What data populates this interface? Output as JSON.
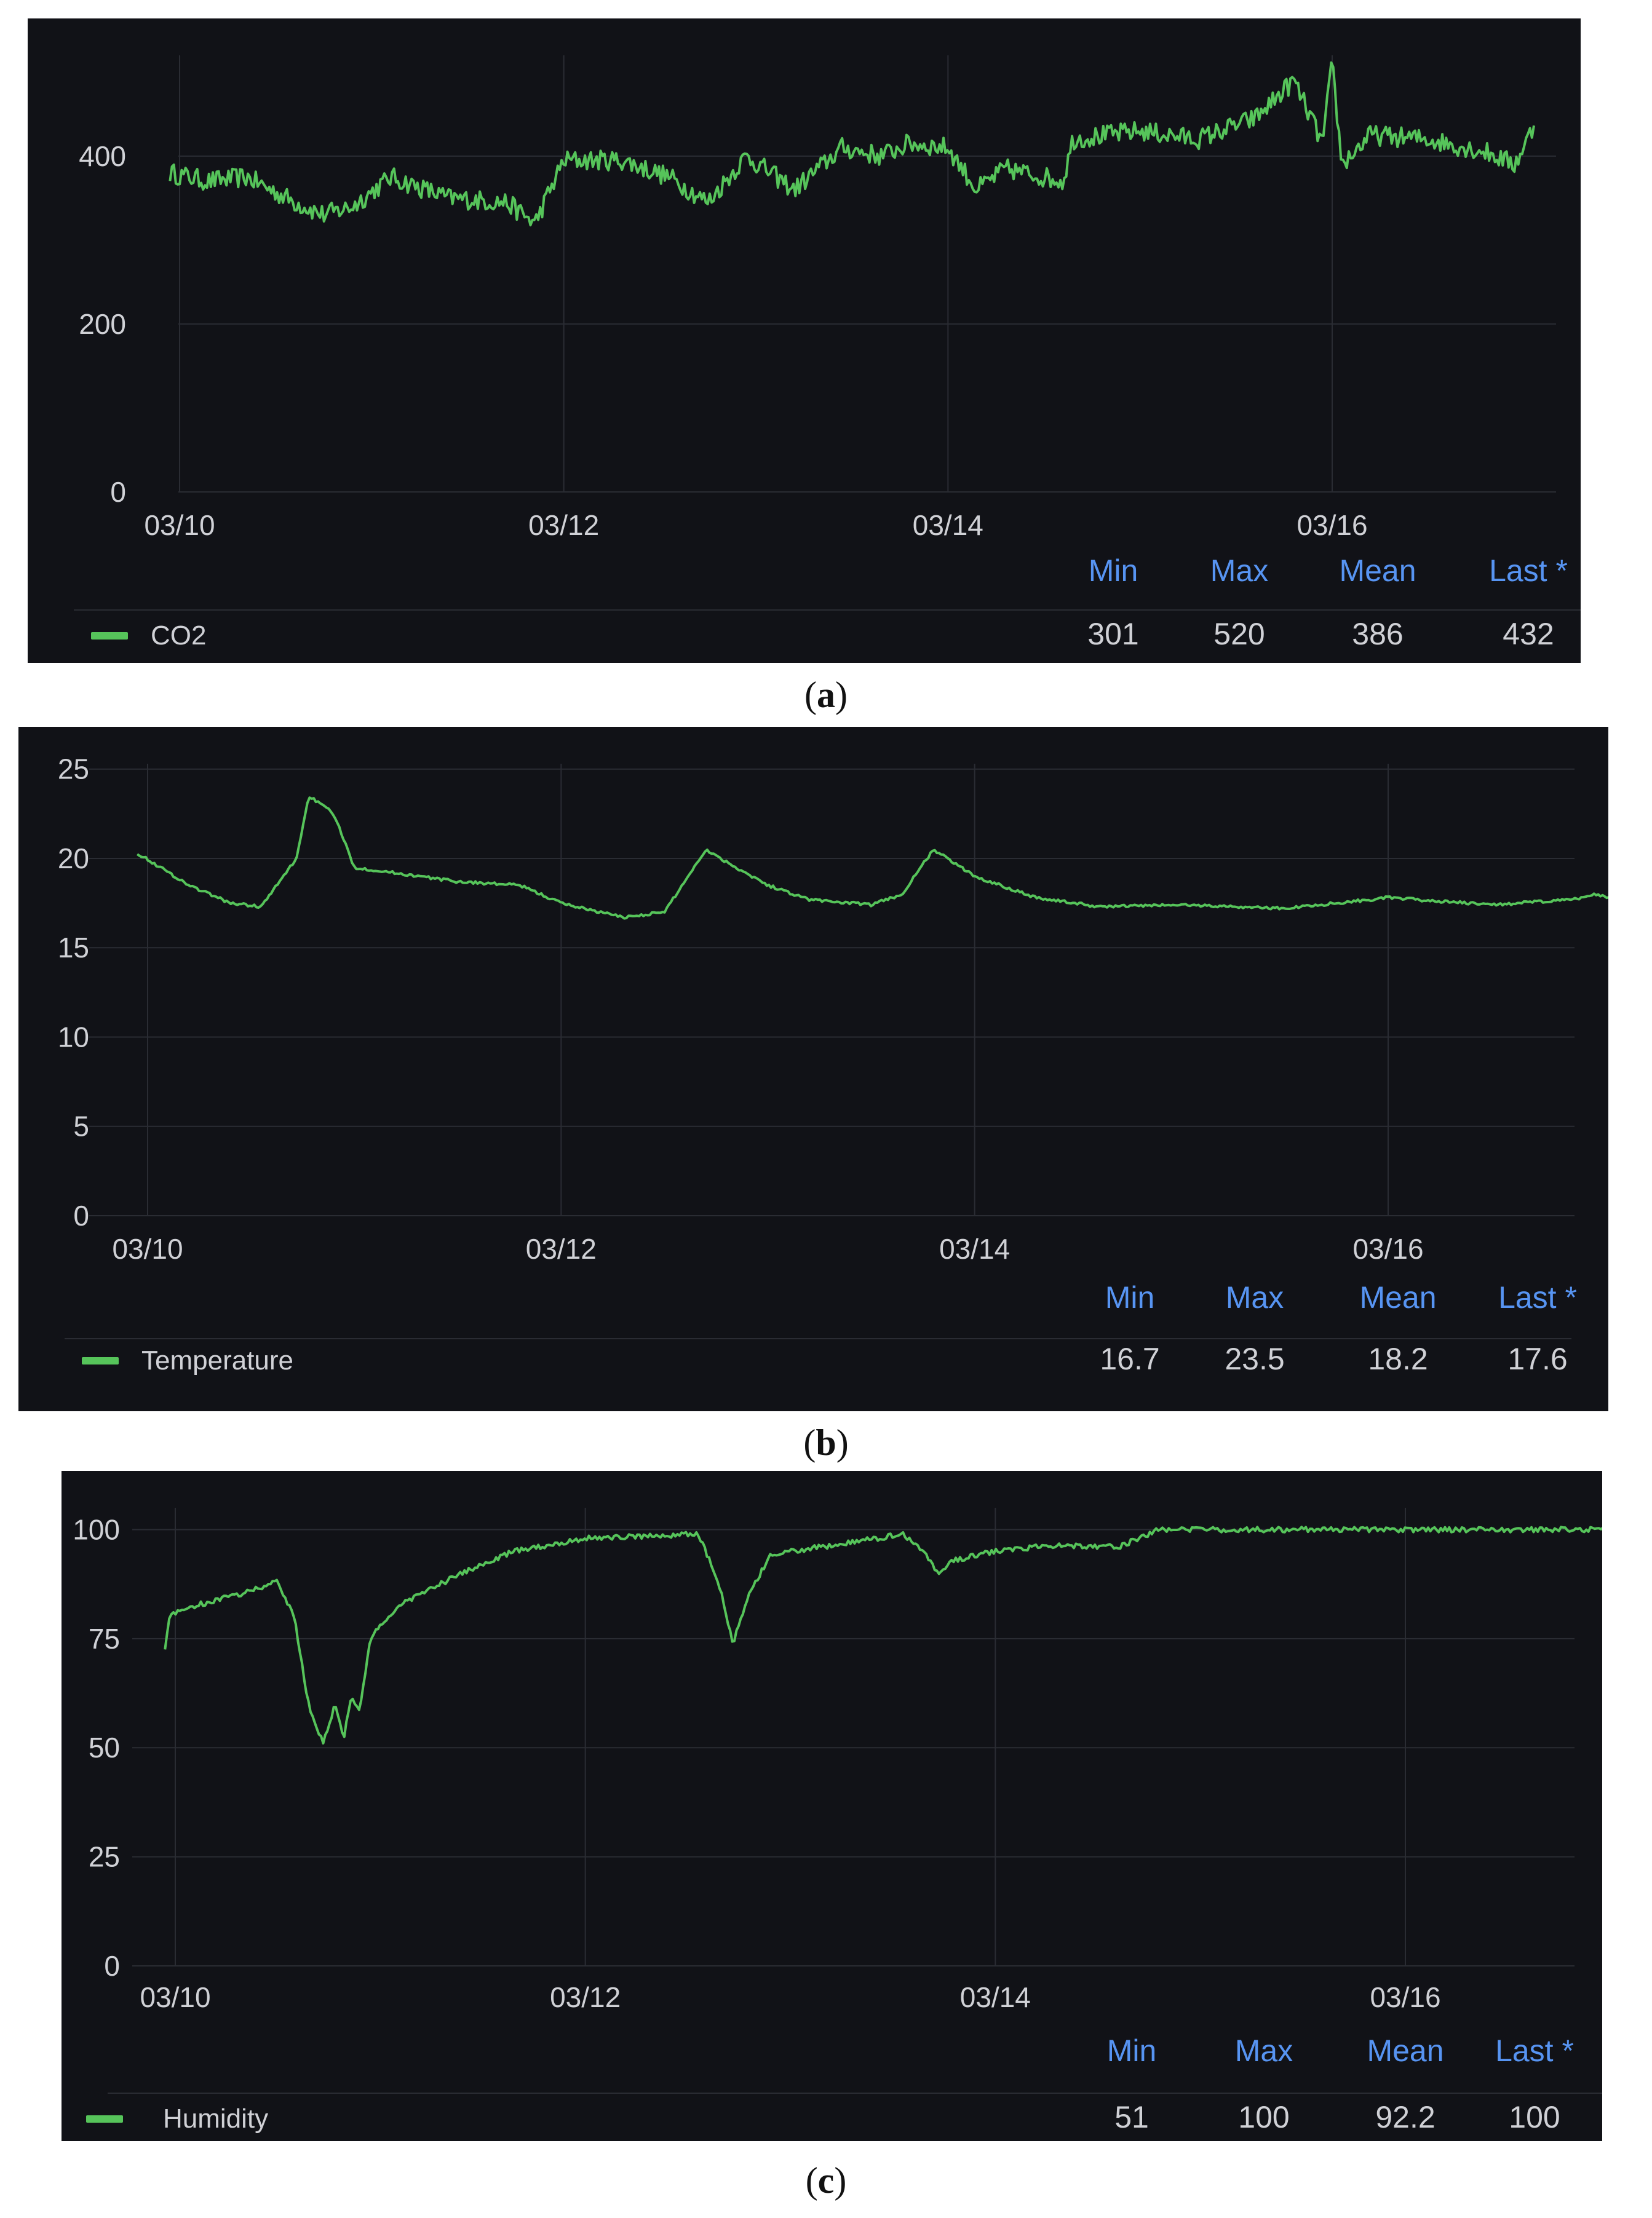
{
  "style": {
    "panel_bg": "#111217",
    "grid_color": "#2a2c33",
    "line_color": "#56c45a",
    "header_color": "#5794f2",
    "text_color": "#d0d1d6"
  },
  "chart_data": [
    {
      "id": "a",
      "type": "line",
      "caption": "a",
      "series_name": "CO2",
      "x_ticks": [
        "03/10",
        "03/12",
        "03/14",
        "03/16"
      ],
      "x_range_days": [
        9.95,
        17.3
      ],
      "y_ticks": [
        0,
        200,
        400
      ],
      "ylim": [
        0,
        520
      ],
      "stat_headers": [
        "Min",
        "Max",
        "Mean",
        "Last *"
      ],
      "stats": [
        "301",
        "520",
        "386",
        "432"
      ],
      "noise": 12,
      "x": [
        9.95,
        10.15,
        10.35,
        10.6,
        10.75,
        10.9,
        11.1,
        11.4,
        11.7,
        11.85,
        12.0,
        12.3,
        12.55,
        12.75,
        12.95,
        13.2,
        13.45,
        13.65,
        13.8,
        14.0,
        14.15,
        14.3,
        14.6,
        14.65,
        15.0,
        15.3,
        15.6,
        15.8,
        15.95,
        16.0,
        16.05,
        16.2,
        16.5,
        16.8,
        16.95,
        17.05
      ],
      "y": [
        380,
        370,
        375,
        345,
        330,
        340,
        375,
        350,
        345,
        320,
        395,
        395,
        375,
        345,
        400,
        360,
        410,
        400,
        415,
        410,
        360,
        385,
        370,
        420,
        430,
        420,
        445,
        490,
        415,
        510,
        390,
        425,
        420,
        405,
        390,
        435
      ]
    },
    {
      "id": "b",
      "type": "line",
      "caption": "b",
      "series_name": "Temperature",
      "x_ticks": [
        "03/10",
        "03/12",
        "03/14",
        "03/16"
      ],
      "x_range_days": [
        9.95,
        17.3
      ],
      "y_ticks": [
        0,
        5,
        10,
        15,
        20,
        25
      ],
      "ylim": [
        0,
        25.3
      ],
      "stat_headers": [
        "Min",
        "Max",
        "Mean",
        "Last *"
      ],
      "stats": [
        "16.7",
        "23.5",
        "18.2",
        "17.6"
      ],
      "noise": 0.08,
      "x": [
        9.95,
        10.2,
        10.4,
        10.55,
        10.72,
        10.78,
        10.9,
        11.0,
        11.5,
        11.8,
        12.0,
        12.3,
        12.5,
        12.7,
        12.8,
        13.0,
        13.2,
        13.5,
        13.65,
        13.8,
        14.0,
        14.3,
        14.6,
        15.0,
        15.5,
        16.0,
        16.5,
        16.9,
        17.0,
        17.15
      ],
      "y": [
        20.3,
        18.5,
        17.5,
        17.3,
        20.0,
        23.5,
        22.5,
        19.5,
        18.7,
        18.5,
        17.5,
        16.7,
        17.0,
        20.5,
        19.8,
        18.5,
        17.7,
        17.4,
        18.0,
        20.5,
        19.0,
        17.8,
        17.3,
        17.4,
        17.2,
        17.8,
        17.4,
        17.7,
        18.0,
        17.6
      ]
    },
    {
      "id": "c",
      "type": "line",
      "caption": "c",
      "series_name": "Humidity",
      "x_ticks": [
        "03/10",
        "03/12",
        "03/14",
        "03/16"
      ],
      "x_range_days": [
        9.85,
        17.3
      ],
      "y_ticks": [
        0,
        25,
        50,
        75,
        100
      ],
      "ylim": [
        0,
        105
      ],
      "stat_headers": [
        "Min",
        "Max",
        "Mean",
        "Last *"
      ],
      "stats": [
        "51",
        "100",
        "92.2",
        "100"
      ],
      "noise": 0.6,
      "x": [
        9.95,
        9.97,
        10.05,
        10.3,
        10.5,
        10.58,
        10.65,
        10.72,
        10.78,
        10.82,
        10.86,
        10.9,
        10.95,
        11.1,
        11.4,
        11.65,
        12.0,
        12.3,
        12.55,
        12.65,
        12.72,
        12.8,
        12.9,
        13.0,
        13.3,
        13.55,
        13.65,
        13.72,
        13.8,
        14.0,
        14.3,
        14.6,
        14.8,
        15.5,
        16.5,
        17.15
      ],
      "y": [
        73,
        80,
        82,
        85,
        88,
        80,
        60,
        51,
        60,
        52,
        62,
        58,
        75,
        83,
        90,
        95,
        98,
        98.5,
        99,
        88,
        74,
        85,
        94,
        95,
        97,
        99,
        95,
        90,
        93,
        95,
        96.5,
        96,
        100,
        100,
        100,
        100
      ]
    }
  ]
}
